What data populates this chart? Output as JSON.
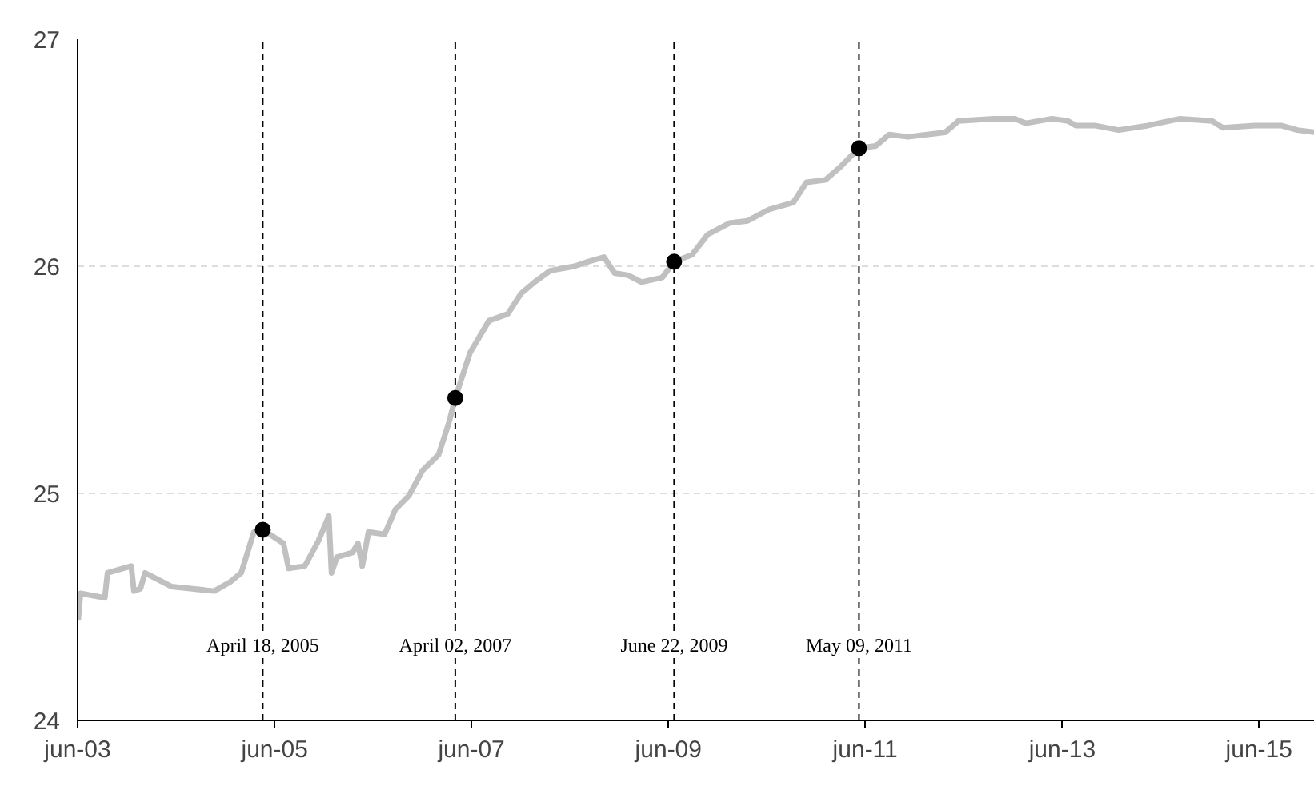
{
  "chart_data": {
    "type": "line",
    "x": [
      "2003-06-03",
      "2003-06-12",
      "2003-09-10",
      "2003-09-20",
      "2003-11-18",
      "2003-12-17",
      "2003-12-27",
      "2004-01-20",
      "2004-02-06",
      "2004-05-14",
      "2004-10-20",
      "2004-12-18",
      "2005-01-28",
      "2005-03-16",
      "2005-04-18",
      "2005-07-04",
      "2005-07-23",
      "2005-09-21",
      "2005-11-10",
      "2005-12-19",
      "2005-12-29",
      "2006-01-18",
      "2006-03-17",
      "2006-04-06",
      "2006-04-22",
      "2006-05-15",
      "2006-07-14",
      "2006-08-23",
      "2006-10-12",
      "2006-12-01",
      "2007-01-30",
      "2007-03-09",
      "2007-04-02",
      "2007-05-27",
      "2007-08-05",
      "2007-10-14",
      "2007-12-02",
      "2008-01-21",
      "2008-03-19",
      "2008-06-17",
      "2008-08-06",
      "2008-10-05",
      "2008-11-13",
      "2009-01-03",
      "2009-02-21",
      "2009-05-09",
      "2009-06-22",
      "2009-08-27",
      "2009-10-25",
      "2010-01-13",
      "2010-03-22",
      "2010-06-09",
      "2010-09-07",
      "2010-10-26",
      "2011-01-04",
      "2011-03-03",
      "2011-05-09",
      "2011-07-10",
      "2011-08-29",
      "2011-11-07",
      "2012-03-24",
      "2012-05-12",
      "2012-09-19",
      "2012-12-07",
      "2013-01-16",
      "2013-04-24",
      "2013-06-22",
      "2013-07-21",
      "2013-09-29",
      "2013-12-27",
      "2014-04-15",
      "2014-08-12",
      "2014-12-09",
      "2015-01-18",
      "2015-05-15",
      "2015-08-22",
      "2015-10-21",
      "2015-12-25"
    ],
    "series": [
      {
        "color": "#c0c0c0",
        "values": [
          24.44,
          24.56,
          24.54,
          24.65,
          24.67,
          24.68,
          24.57,
          24.58,
          24.65,
          24.59,
          24.57,
          24.61,
          24.65,
          24.83,
          24.84,
          24.78,
          24.67,
          24.68,
          24.79,
          24.9,
          24.65,
          24.72,
          24.74,
          24.78,
          24.68,
          24.83,
          24.82,
          24.93,
          24.99,
          25.1,
          25.17,
          25.31,
          25.42,
          25.62,
          25.76,
          25.79,
          25.88,
          25.93,
          25.98,
          26.0,
          26.02,
          26.04,
          25.97,
          25.96,
          25.93,
          25.95,
          26.02,
          26.05,
          26.14,
          26.19,
          26.2,
          26.25,
          26.28,
          26.37,
          26.38,
          26.44,
          26.52,
          26.53,
          26.58,
          26.57,
          26.59,
          26.64,
          26.65,
          26.65,
          26.63,
          26.65,
          26.64,
          26.62,
          26.62,
          26.6,
          26.62,
          26.65,
          26.64,
          26.61,
          26.62,
          26.62,
          26.6,
          26.59
        ]
      },
      {
        "type": "scatter",
        "marker": "circle",
        "color": "#000000",
        "x": [
          "2005-04-18",
          "2007-04-02",
          "2009-06-22",
          "2011-05-09"
        ],
        "values": [
          24.84,
          25.42,
          26.02,
          26.52
        ]
      }
    ],
    "ref_lines": [
      {
        "axis": "x",
        "value": "2005-04-18",
        "label": "April 18, 2005",
        "color": "#000000",
        "line_style": "dashed"
      },
      {
        "axis": "x",
        "value": "2007-04-02",
        "label": "April 02, 2007",
        "color": "#000000",
        "line_style": "dashed"
      },
      {
        "axis": "x",
        "value": "2009-06-22",
        "label": "June 22, 2009",
        "color": "#000000",
        "line_style": "dashed"
      },
      {
        "axis": "x",
        "value": "2011-05-09",
        "label": "May 09, 2011",
        "color": "#000000",
        "line_style": "dashed"
      }
    ],
    "xlim": [
      "2003-06-01",
      "2015-12-25"
    ],
    "xticks": [
      {
        "value": "2003-06-01",
        "label": "jun-03"
      },
      {
        "value": "2005-06-01",
        "label": "jun-05"
      },
      {
        "value": "2007-06-01",
        "label": "jun-07"
      },
      {
        "value": "2009-06-01",
        "label": "jun-09"
      },
      {
        "value": "2011-06-01",
        "label": "jun-11"
      },
      {
        "value": "2013-06-01",
        "label": "jun-13"
      },
      {
        "value": "2015-06-01",
        "label": "jun-15"
      }
    ],
    "ylim": [
      24,
      27
    ],
    "yticks": [
      24,
      25,
      26,
      27
    ],
    "grid": "y",
    "line_style": "solid"
  }
}
